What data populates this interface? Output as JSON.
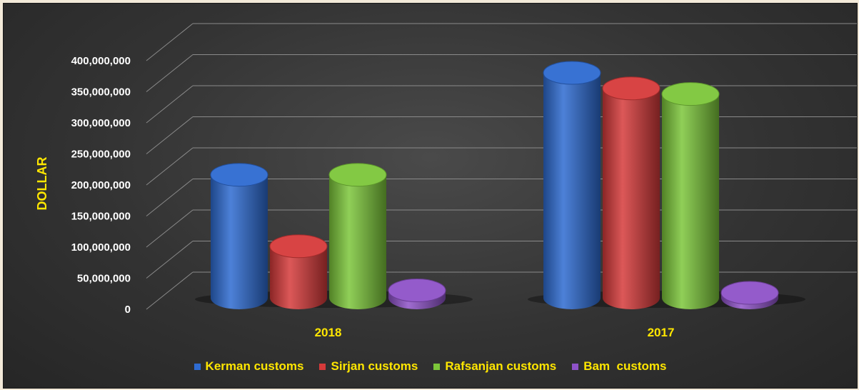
{
  "chart_data": {
    "type": "bar",
    "title": "",
    "xlabel": "",
    "ylabel": "DOLLAR",
    "categories": [
      "2018",
      "2017"
    ],
    "series": [
      {
        "name": "Kerman customs",
        "values": [
          198000000,
          362000000
        ],
        "color": "#2e6bd1"
      },
      {
        "name": "Sirjan customs",
        "values": [
          83000000,
          337000000
        ],
        "color": "#d63a3a"
      },
      {
        "name": "Rafsanjan customs",
        "values": [
          198000000,
          328000000
        ],
        "color": "#7cc63a"
      },
      {
        "name": "Bam  customs",
        "values": [
          12000000,
          8000000
        ],
        "color": "#8e52c8"
      }
    ],
    "ylim": [
      0,
      400000000
    ],
    "yticks": [
      "0",
      "50,000,000",
      "100,000,000",
      "150,000,000",
      "200,000,000",
      "250,000,000",
      "300,000,000",
      "350,000,000",
      "400,000,000"
    ],
    "grid": true,
    "legend": "bottom",
    "style": "3d-cylinder"
  }
}
